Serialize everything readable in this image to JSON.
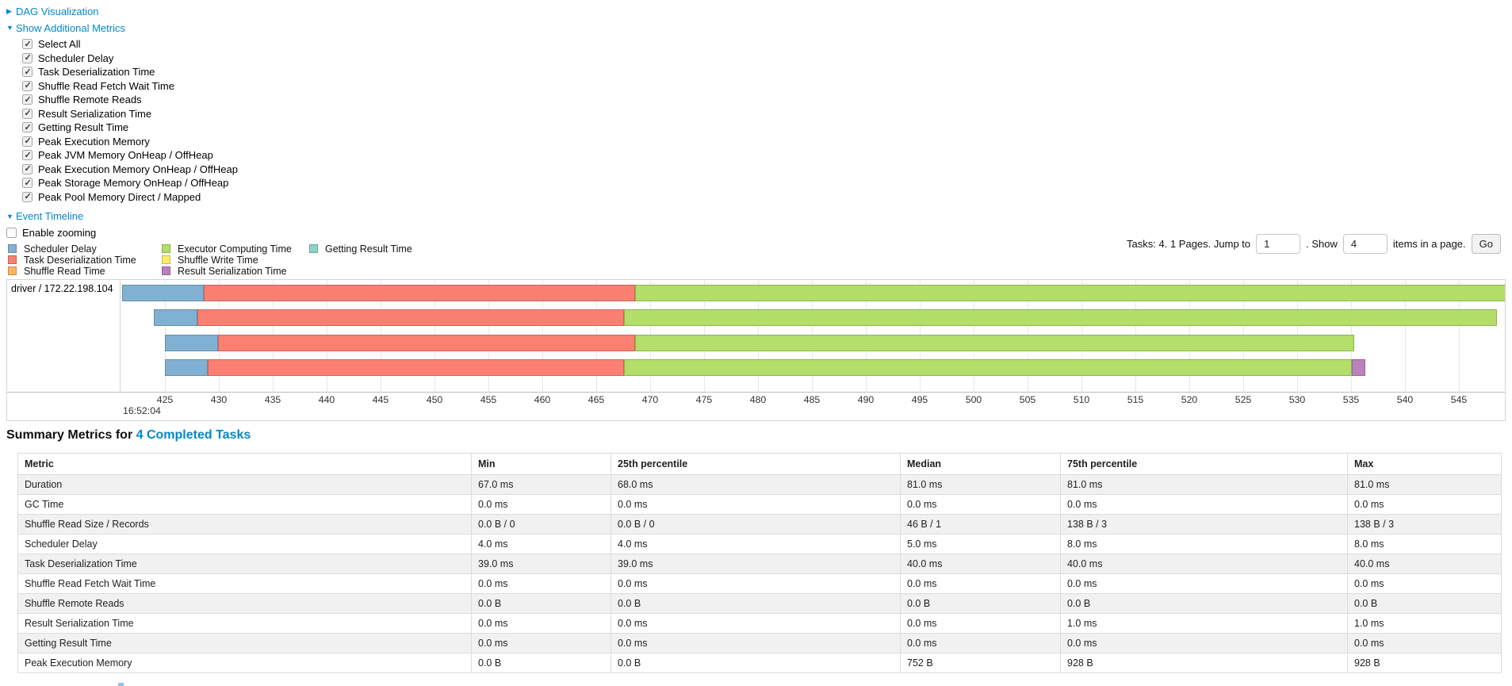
{
  "colors": {
    "link": "#0088cc",
    "table_stripe": "#f1f1f2",
    "chart_border": "#d4d4d4"
  },
  "sections": {
    "dag": {
      "arrow": "▶",
      "label": "DAG Visualization"
    },
    "additional_metrics": {
      "arrow": "▼",
      "label": "Show Additional Metrics"
    },
    "event_timeline": {
      "arrow": "▼",
      "label": "Event Timeline"
    }
  },
  "metric_checkboxes": [
    {
      "label": "Select All",
      "checked": true
    },
    {
      "label": "Scheduler Delay",
      "checked": true
    },
    {
      "label": "Task Deserialization Time",
      "checked": true
    },
    {
      "label": "Shuffle Read Fetch Wait Time",
      "checked": true
    },
    {
      "label": "Shuffle Remote Reads",
      "checked": true
    },
    {
      "label": "Result Serialization Time",
      "checked": true
    },
    {
      "label": "Getting Result Time",
      "checked": true
    },
    {
      "label": "Peak Execution Memory",
      "checked": true
    },
    {
      "label": "Peak JVM Memory OnHeap / OffHeap",
      "checked": true
    },
    {
      "label": "Peak Execution Memory OnHeap / OffHeap",
      "checked": true
    },
    {
      "label": "Peak Storage Memory OnHeap / OffHeap",
      "checked": true
    },
    {
      "label": "Peak Pool Memory Direct / Mapped",
      "checked": true
    }
  ],
  "enable_zooming": {
    "label": "Enable zooming",
    "checked": false
  },
  "legend": {
    "columns": [
      [
        {
          "key": "scheduler_delay",
          "label": "Scheduler Delay",
          "color": "#80B1D3"
        },
        {
          "key": "task_deserialization",
          "label": "Task Deserialization Time",
          "color": "#FB8072"
        },
        {
          "key": "shuffle_read",
          "label": "Shuffle Read Time",
          "color": "#FDB462"
        }
      ],
      [
        {
          "key": "executor_computing",
          "label": "Executor Computing Time",
          "color": "#B3DE69"
        },
        {
          "key": "shuffle_write",
          "label": "Shuffle Write Time",
          "color": "#FFED6F"
        },
        {
          "key": "result_serialization",
          "label": "Result Serialization Time",
          "color": "#BC80BD"
        }
      ],
      [
        {
          "key": "getting_result",
          "label": "Getting Result Time",
          "color": "#8DD3C7"
        }
      ]
    ]
  },
  "pagination": {
    "prefix": "Tasks: 4. 1 Pages. Jump to",
    "jump_value": "1",
    "middle": ". Show",
    "show_value": "4",
    "suffix": "items in a page.",
    "go_label": "Go"
  },
  "chart_data": {
    "type": "timeline",
    "group_label": "driver / 172.22.198.104",
    "time_of_day": "16:52:04",
    "x_unit": "ms after 16:52:04",
    "axis": {
      "tick_start": 425,
      "tick_end": 550,
      "tick_step": 5,
      "visible_min": 420.8,
      "visible_max": 549.0
    },
    "colors": {
      "scheduler_delay": "#80B1D3",
      "task_deserialization": "#FB8072",
      "shuffle_read": "#FDB462",
      "executor_computing": "#B3DE69",
      "shuffle_write": "#FFED6F",
      "result_serialization": "#BC80BD",
      "getting_result": "#8DD3C7"
    },
    "tasks": [
      {
        "segments": [
          {
            "type": "scheduler_delay",
            "start": 421.0,
            "end": 428.6
          },
          {
            "type": "task_deserialization",
            "start": 428.6,
            "end": 468.6
          },
          {
            "type": "executor_computing",
            "start": 468.6,
            "end": 549.5
          }
        ]
      },
      {
        "segments": [
          {
            "type": "scheduler_delay",
            "start": 424.0,
            "end": 428.0
          },
          {
            "type": "task_deserialization",
            "start": 428.0,
            "end": 467.6
          },
          {
            "type": "executor_computing",
            "start": 467.6,
            "end": 548.5
          }
        ]
      },
      {
        "segments": [
          {
            "type": "scheduler_delay",
            "start": 425.0,
            "end": 429.9
          },
          {
            "type": "task_deserialization",
            "start": 429.9,
            "end": 468.6
          },
          {
            "type": "executor_computing",
            "start": 468.6,
            "end": 535.3
          }
        ]
      },
      {
        "segments": [
          {
            "type": "scheduler_delay",
            "start": 425.0,
            "end": 429.0
          },
          {
            "type": "task_deserialization",
            "start": 429.0,
            "end": 467.6
          },
          {
            "type": "executor_computing",
            "start": 467.6,
            "end": 535.1
          },
          {
            "type": "result_serialization",
            "start": 535.1,
            "end": 536.3
          }
        ]
      }
    ]
  },
  "summary": {
    "title_prefix": "Summary Metrics for ",
    "title_link": "4 Completed Tasks",
    "table": {
      "headers": [
        "Metric",
        "Min",
        "25th percentile",
        "Median",
        "75th percentile",
        "Max"
      ],
      "rows": [
        [
          "Duration",
          "67.0 ms",
          "68.0 ms",
          "81.0 ms",
          "81.0 ms",
          "81.0 ms"
        ],
        [
          "GC Time",
          "0.0 ms",
          "0.0 ms",
          "0.0 ms",
          "0.0 ms",
          "0.0 ms"
        ],
        [
          "Shuffle Read Size / Records",
          "0.0 B / 0",
          "0.0 B / 0",
          "46 B / 1",
          "138 B / 3",
          "138 B / 3"
        ],
        [
          "Scheduler Delay",
          "4.0 ms",
          "4.0 ms",
          "5.0 ms",
          "8.0 ms",
          "8.0 ms"
        ],
        [
          "Task Deserialization Time",
          "39.0 ms",
          "39.0 ms",
          "40.0 ms",
          "40.0 ms",
          "40.0 ms"
        ],
        [
          "Shuffle Read Fetch Wait Time",
          "0.0 ms",
          "0.0 ms",
          "0.0 ms",
          "0.0 ms",
          "0.0 ms"
        ],
        [
          "Shuffle Remote Reads",
          "0.0 B",
          "0.0 B",
          "0.0 B",
          "0.0 B",
          "0.0 B"
        ],
        [
          "Result Serialization Time",
          "0.0 ms",
          "0.0 ms",
          "0.0 ms",
          "1.0 ms",
          "1.0 ms"
        ],
        [
          "Getting Result Time",
          "0.0 ms",
          "0.0 ms",
          "0.0 ms",
          "0.0 ms",
          "0.0 ms"
        ],
        [
          "Peak Execution Memory",
          "0.0 B",
          "0.0 B",
          "752 B",
          "928 B",
          "928 B"
        ]
      ]
    }
  }
}
